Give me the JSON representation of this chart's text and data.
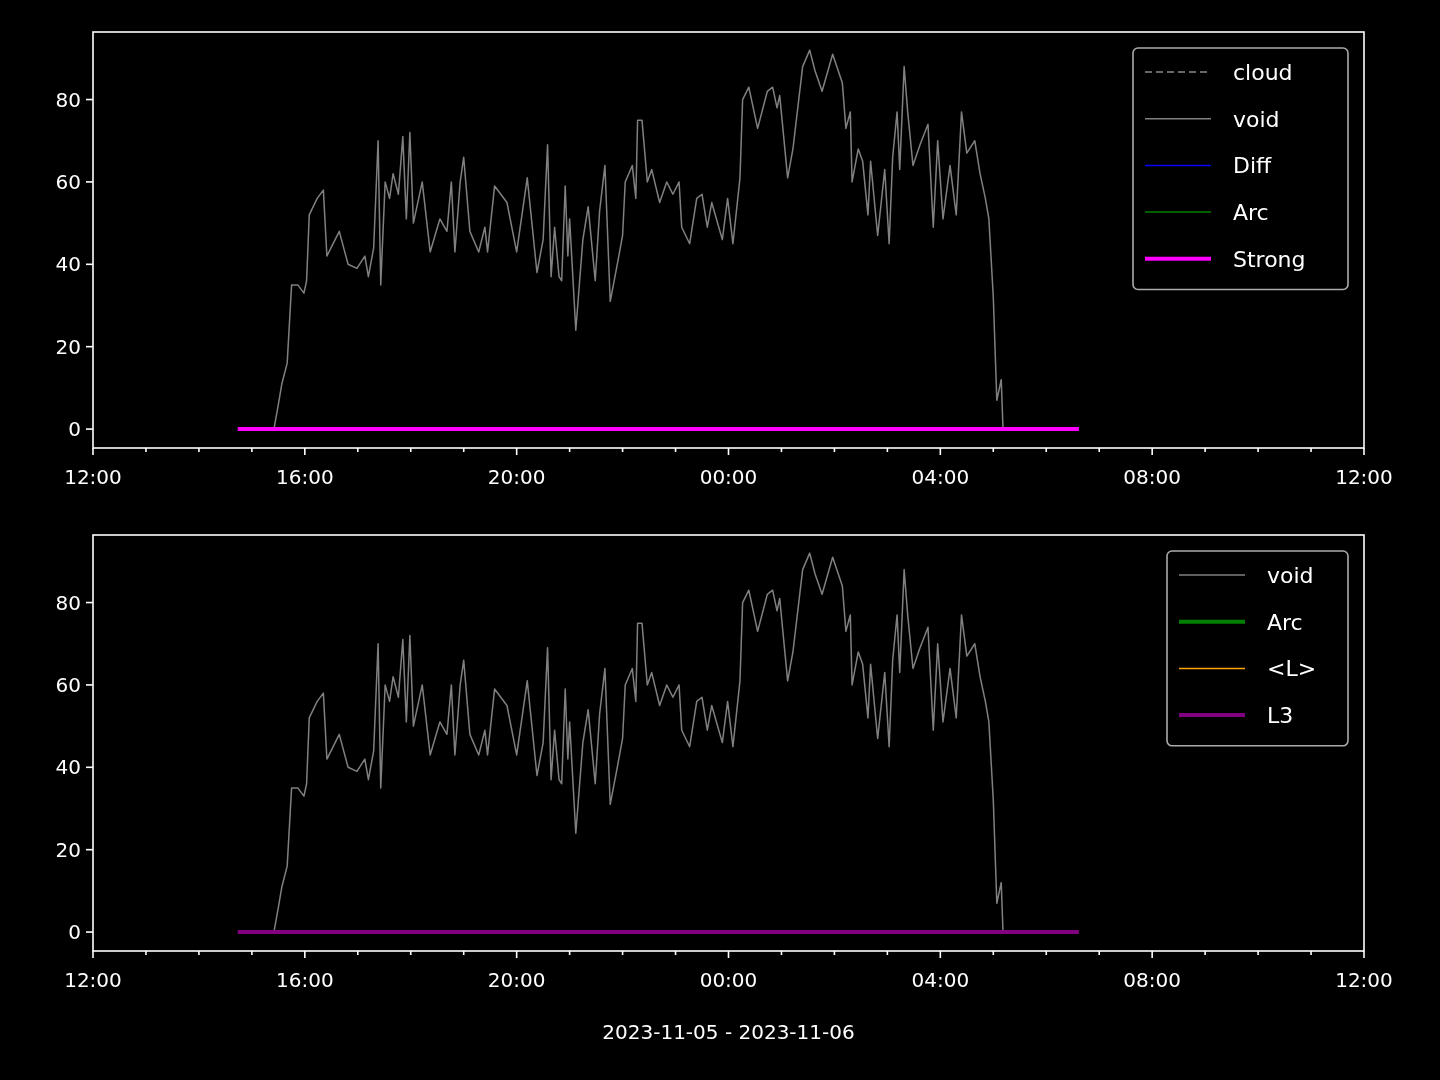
{
  "chart_data": [
    {
      "type": "line",
      "ylim": [
        -4.6,
        96.4
      ],
      "yticks": [
        0,
        20,
        40,
        60,
        80
      ],
      "xlim": [
        "2023-11-05T12:00",
        "2023-11-06T12:00"
      ],
      "xticks": [
        {
          "value": "2023-11-05T12:00",
          "label": "12:00"
        },
        {
          "value": "2023-11-05T13:00",
          "label": null
        },
        {
          "value": "2023-11-05T14:00",
          "label": null
        },
        {
          "value": "2023-11-05T15:00",
          "label": null
        },
        {
          "value": "2023-11-05T16:00",
          "label": "16:00"
        },
        {
          "value": "2023-11-05T17:00",
          "label": null
        },
        {
          "value": "2023-11-05T18:00",
          "label": null
        },
        {
          "value": "2023-11-05T19:00",
          "label": null
        },
        {
          "value": "2023-11-05T20:00",
          "label": "20:00"
        },
        {
          "value": "2023-11-05T21:00",
          "label": null
        },
        {
          "value": "2023-11-05T22:00",
          "label": null
        },
        {
          "value": "2023-11-05T23:00",
          "label": null
        },
        {
          "value": "2023-11-06T00:00",
          "label": "00:00"
        },
        {
          "value": "2023-11-06T01:00",
          "label": null
        },
        {
          "value": "2023-11-06T02:00",
          "label": null
        },
        {
          "value": "2023-11-06T03:00",
          "label": null
        },
        {
          "value": "2023-11-06T04:00",
          "label": "04:00"
        },
        {
          "value": "2023-11-06T05:00",
          "label": null
        },
        {
          "value": "2023-11-06T06:00",
          "label": null
        },
        {
          "value": "2023-11-06T07:00",
          "label": null
        },
        {
          "value": "2023-11-06T08:00",
          "label": "08:00"
        },
        {
          "value": "2023-11-06T09:00",
          "label": null
        },
        {
          "value": "2023-11-06T10:00",
          "label": null
        },
        {
          "value": "2023-11-06T11:00",
          "label": null
        },
        {
          "value": "2023-11-06T12:00",
          "label": "12:00"
        }
      ],
      "grid": false,
      "legend": "top right",
      "series": [
        {
          "name": "cloud",
          "color": "#888888",
          "line_style": "dashed"
        },
        {
          "name": "void",
          "color": "#808080",
          "x": [
            "2023-11-05T15:25",
            "2023-11-05T15:30",
            "2023-11-05T15:34",
            "2023-11-05T15:40",
            "2023-11-05T15:45",
            "2023-11-05T15:52",
            "2023-11-05T15:59",
            "2023-11-05T16:02",
            "2023-11-05T16:05",
            "2023-11-05T16:14",
            "2023-11-05T16:21",
            "2023-11-05T16:25",
            "2023-11-05T16:39",
            "2023-11-05T16:49",
            "2023-11-05T16:59",
            "2023-11-05T17:08",
            "2023-11-05T17:12",
            "2023-11-05T17:18",
            "2023-11-05T17:23",
            "2023-11-05T17:26",
            "2023-11-05T17:31",
            "2023-11-05T17:36",
            "2023-11-05T17:40",
            "2023-11-05T17:46",
            "2023-11-05T17:51",
            "2023-11-05T17:55",
            "2023-11-05T17:59",
            "2023-11-05T18:03",
            "2023-11-05T18:13",
            "2023-11-05T18:22",
            "2023-11-05T18:33",
            "2023-11-05T18:41",
            "2023-11-05T18:46",
            "2023-11-05T18:50",
            "2023-11-05T18:56",
            "2023-11-05T19:00",
            "2023-11-05T19:07",
            "2023-11-05T19:17",
            "2023-11-05T19:24",
            "2023-11-05T19:27",
            "2023-11-05T19:35",
            "2023-11-05T19:49",
            "2023-11-05T20:00",
            "2023-11-05T20:12",
            "2023-11-05T20:23",
            "2023-11-05T20:30",
            "2023-11-05T20:35",
            "2023-11-05T20:39",
            "2023-11-05T20:43",
            "2023-11-05T20:48",
            "2023-11-05T20:51",
            "2023-11-05T20:55",
            "2023-11-05T20:58",
            "2023-11-05T21:00",
            "2023-11-05T21:07",
            "2023-11-05T21:15",
            "2023-11-05T21:21",
            "2023-11-05T21:29",
            "2023-11-05T21:34",
            "2023-11-05T21:40",
            "2023-11-05T21:46",
            "2023-11-05T21:54",
            "2023-11-05T22:00",
            "2023-11-05T22:03",
            "2023-11-05T22:11",
            "2023-11-05T22:15",
            "2023-11-05T22:17",
            "2023-11-05T22:22",
            "2023-11-05T22:28",
            "2023-11-05T22:33",
            "2023-11-05T22:42",
            "2023-11-05T22:50",
            "2023-11-05T22:57",
            "2023-11-05T23:04",
            "2023-11-05T23:07",
            "2023-11-05T23:16",
            "2023-11-05T23:24",
            "2023-11-05T23:30",
            "2023-11-05T23:36",
            "2023-11-05T23:41",
            "2023-11-05T23:53",
            "2023-11-05T23:59",
            "2023-11-06T00:05",
            "2023-11-06T00:13",
            "2023-11-06T00:16",
            "2023-11-06T00:23",
            "2023-11-06T00:33",
            "2023-11-06T00:44",
            "2023-11-06T00:50",
            "2023-11-06T00:55",
            "2023-11-06T00:58",
            "2023-11-06T01:07",
            "2023-11-06T01:13",
            "2023-11-06T01:24",
            "2023-11-06T01:32",
            "2023-11-06T01:38",
            "2023-11-06T01:46",
            "2023-11-06T01:58",
            "2023-11-06T02:09",
            "2023-11-06T02:13",
            "2023-11-06T02:18",
            "2023-11-06T02:20",
            "2023-11-06T02:27",
            "2023-11-06T02:32",
            "2023-11-06T02:38",
            "2023-11-06T02:41",
            "2023-11-06T02:49",
            "2023-11-06T02:57",
            "2023-11-06T03:02",
            "2023-11-06T03:06",
            "2023-11-06T03:11",
            "2023-11-06T03:14",
            "2023-11-06T03:19",
            "2023-11-06T03:23",
            "2023-11-06T03:29",
            "2023-11-06T03:37",
            "2023-11-06T03:46",
            "2023-11-06T03:52",
            "2023-11-06T03:57",
            "2023-11-06T04:03",
            "2023-11-06T04:11",
            "2023-11-06T04:18",
            "2023-11-06T04:24",
            "2023-11-06T04:30",
            "2023-11-06T04:39",
            "2023-11-06T04:45",
            "2023-11-06T04:51",
            "2023-11-06T04:55",
            "2023-11-06T05:00",
            "2023-11-06T05:04",
            "2023-11-06T05:09",
            "2023-11-06T05:11"
          ],
          "values": [
            0,
            6,
            11,
            16,
            35,
            35,
            33,
            36,
            52,
            56,
            58,
            42,
            48,
            40,
            39,
            42,
            37,
            44,
            70,
            35,
            60,
            56,
            62,
            57,
            71,
            51,
            72,
            50,
            60,
            43,
            51,
            48,
            60,
            43,
            60,
            66,
            48,
            43,
            49,
            43,
            59,
            55,
            43,
            61,
            38,
            46,
            69,
            37,
            49,
            37,
            36,
            59,
            42,
            51,
            24,
            46,
            54,
            36,
            53,
            64,
            31,
            40,
            47,
            60,
            64,
            56,
            75,
            75,
            60,
            63,
            55,
            60,
            57,
            60,
            49,
            45,
            56,
            57,
            49,
            55,
            46,
            56,
            45,
            61,
            80,
            83,
            73,
            82,
            83,
            78,
            81,
            61,
            68,
            88,
            92,
            87,
            82,
            91,
            84,
            73,
            77,
            60,
            68,
            65,
            52,
            65,
            47,
            63,
            45,
            66,
            77,
            63,
            88,
            77,
            64,
            69,
            74,
            49,
            70,
            51,
            64,
            52,
            77,
            67,
            70,
            62,
            56,
            51,
            32,
            7,
            12,
            0
          ]
        },
        {
          "name": "Diff",
          "color": "#0000ff"
        },
        {
          "name": "Arc",
          "color": "#008000"
        },
        {
          "name": "Strong",
          "color": "#ff00ff",
          "x": [
            "2023-11-05T14:44",
            "2023-11-06T06:37"
          ],
          "values": [
            0,
            0
          ]
        }
      ]
    },
    {
      "type": "line",
      "xlabel": "2023-11-05 - 2023-11-06",
      "ylim": [
        -4.6,
        96.4
      ],
      "yticks": [
        0,
        20,
        40,
        60,
        80
      ],
      "xlim": [
        "2023-11-05T12:00",
        "2023-11-06T12:00"
      ],
      "xticks": [
        {
          "value": "2023-11-05T12:00",
          "label": "12:00"
        },
        {
          "value": "2023-11-05T13:00",
          "label": null
        },
        {
          "value": "2023-11-05T14:00",
          "label": null
        },
        {
          "value": "2023-11-05T15:00",
          "label": null
        },
        {
          "value": "2023-11-05T16:00",
          "label": "16:00"
        },
        {
          "value": "2023-11-05T17:00",
          "label": null
        },
        {
          "value": "2023-11-05T18:00",
          "label": null
        },
        {
          "value": "2023-11-05T19:00",
          "label": null
        },
        {
          "value": "2023-11-05T20:00",
          "label": "20:00"
        },
        {
          "value": "2023-11-05T21:00",
          "label": null
        },
        {
          "value": "2023-11-05T22:00",
          "label": null
        },
        {
          "value": "2023-11-05T23:00",
          "label": null
        },
        {
          "value": "2023-11-06T00:00",
          "label": "00:00"
        },
        {
          "value": "2023-11-06T01:00",
          "label": null
        },
        {
          "value": "2023-11-06T02:00",
          "label": null
        },
        {
          "value": "2023-11-06T03:00",
          "label": null
        },
        {
          "value": "2023-11-06T04:00",
          "label": "04:00"
        },
        {
          "value": "2023-11-06T05:00",
          "label": null
        },
        {
          "value": "2023-11-06T06:00",
          "label": null
        },
        {
          "value": "2023-11-06T07:00",
          "label": null
        },
        {
          "value": "2023-11-06T08:00",
          "label": "08:00"
        },
        {
          "value": "2023-11-06T09:00",
          "label": null
        },
        {
          "value": "2023-11-06T10:00",
          "label": null
        },
        {
          "value": "2023-11-06T11:00",
          "label": null
        },
        {
          "value": "2023-11-06T12:00",
          "label": "12:00"
        }
      ],
      "grid": false,
      "legend": "top right",
      "series": [
        {
          "name": "void",
          "color": "#808080",
          "x": [
            "2023-11-05T15:25",
            "2023-11-05T15:30",
            "2023-11-05T15:34",
            "2023-11-05T15:40",
            "2023-11-05T15:45",
            "2023-11-05T15:52",
            "2023-11-05T15:59",
            "2023-11-05T16:02",
            "2023-11-05T16:05",
            "2023-11-05T16:14",
            "2023-11-05T16:21",
            "2023-11-05T16:25",
            "2023-11-05T16:39",
            "2023-11-05T16:49",
            "2023-11-05T16:59",
            "2023-11-05T17:08",
            "2023-11-05T17:12",
            "2023-11-05T17:18",
            "2023-11-05T17:23",
            "2023-11-05T17:26",
            "2023-11-05T17:31",
            "2023-11-05T17:36",
            "2023-11-05T17:40",
            "2023-11-05T17:46",
            "2023-11-05T17:51",
            "2023-11-05T17:55",
            "2023-11-05T17:59",
            "2023-11-05T18:03",
            "2023-11-05T18:13",
            "2023-11-05T18:22",
            "2023-11-05T18:33",
            "2023-11-05T18:41",
            "2023-11-05T18:46",
            "2023-11-05T18:50",
            "2023-11-05T18:56",
            "2023-11-05T19:00",
            "2023-11-05T19:07",
            "2023-11-05T19:17",
            "2023-11-05T19:24",
            "2023-11-05T19:27",
            "2023-11-05T19:35",
            "2023-11-05T19:49",
            "2023-11-05T20:00",
            "2023-11-05T20:12",
            "2023-11-05T20:23",
            "2023-11-05T20:30",
            "2023-11-05T20:35",
            "2023-11-05T20:39",
            "2023-11-05T20:43",
            "2023-11-05T20:48",
            "2023-11-05T20:51",
            "2023-11-05T20:55",
            "2023-11-05T20:58",
            "2023-11-05T21:00",
            "2023-11-05T21:07",
            "2023-11-05T21:15",
            "2023-11-05T21:21",
            "2023-11-05T21:29",
            "2023-11-05T21:34",
            "2023-11-05T21:40",
            "2023-11-05T21:46",
            "2023-11-05T21:54",
            "2023-11-05T22:00",
            "2023-11-05T22:03",
            "2023-11-05T22:11",
            "2023-11-05T22:15",
            "2023-11-05T22:17",
            "2023-11-05T22:22",
            "2023-11-05T22:28",
            "2023-11-05T22:33",
            "2023-11-05T22:42",
            "2023-11-05T22:50",
            "2023-11-05T22:57",
            "2023-11-05T23:04",
            "2023-11-05T23:07",
            "2023-11-05T23:16",
            "2023-11-05T23:24",
            "2023-11-05T23:30",
            "2023-11-05T23:36",
            "2023-11-05T23:41",
            "2023-11-05T23:53",
            "2023-11-05T23:59",
            "2023-11-06T00:05",
            "2023-11-06T00:13",
            "2023-11-06T00:16",
            "2023-11-06T00:23",
            "2023-11-06T00:33",
            "2023-11-06T00:44",
            "2023-11-06T00:50",
            "2023-11-06T00:55",
            "2023-11-06T00:58",
            "2023-11-06T01:07",
            "2023-11-06T01:13",
            "2023-11-06T01:24",
            "2023-11-06T01:32",
            "2023-11-06T01:38",
            "2023-11-06T01:46",
            "2023-11-06T01:58",
            "2023-11-06T02:09",
            "2023-11-06T02:13",
            "2023-11-06T02:18",
            "2023-11-06T02:20",
            "2023-11-06T02:27",
            "2023-11-06T02:32",
            "2023-11-06T02:38",
            "2023-11-06T02:41",
            "2023-11-06T02:49",
            "2023-11-06T02:57",
            "2023-11-06T03:02",
            "2023-11-06T03:06",
            "2023-11-06T03:11",
            "2023-11-06T03:14",
            "2023-11-06T03:19",
            "2023-11-06T03:23",
            "2023-11-06T03:29",
            "2023-11-06T03:37",
            "2023-11-06T03:46",
            "2023-11-06T03:52",
            "2023-11-06T03:57",
            "2023-11-06T04:03",
            "2023-11-06T04:11",
            "2023-11-06T04:18",
            "2023-11-06T04:24",
            "2023-11-06T04:30",
            "2023-11-06T04:39",
            "2023-11-06T04:45",
            "2023-11-06T04:51",
            "2023-11-06T04:55",
            "2023-11-06T05:00",
            "2023-11-06T05:04",
            "2023-11-06T05:09",
            "2023-11-06T05:11"
          ],
          "values": [
            0,
            6,
            11,
            16,
            35,
            35,
            33,
            36,
            52,
            56,
            58,
            42,
            48,
            40,
            39,
            42,
            37,
            44,
            70,
            35,
            60,
            56,
            62,
            57,
            71,
            51,
            72,
            50,
            60,
            43,
            51,
            48,
            60,
            43,
            60,
            66,
            48,
            43,
            49,
            43,
            59,
            55,
            43,
            61,
            38,
            46,
            69,
            37,
            49,
            37,
            36,
            59,
            42,
            51,
            24,
            46,
            54,
            36,
            53,
            64,
            31,
            40,
            47,
            60,
            64,
            56,
            75,
            75,
            60,
            63,
            55,
            60,
            57,
            60,
            49,
            45,
            56,
            57,
            49,
            55,
            46,
            56,
            45,
            61,
            80,
            83,
            73,
            82,
            83,
            78,
            81,
            61,
            68,
            88,
            92,
            87,
            82,
            91,
            84,
            73,
            77,
            60,
            68,
            65,
            52,
            65,
            47,
            63,
            45,
            66,
            77,
            63,
            88,
            77,
            64,
            69,
            74,
            49,
            70,
            51,
            64,
            52,
            77,
            67,
            70,
            62,
            56,
            51,
            32,
            7,
            12,
            0
          ]
        },
        {
          "name": "Arc",
          "color": "#008000"
        },
        {
          "name": "<L>",
          "color": "#ffa500"
        },
        {
          "name": "L3",
          "color": "#800080",
          "x": [
            "2023-11-05T14:44",
            "2023-11-06T06:37"
          ],
          "values": [
            0,
            0
          ]
        }
      ]
    }
  ]
}
